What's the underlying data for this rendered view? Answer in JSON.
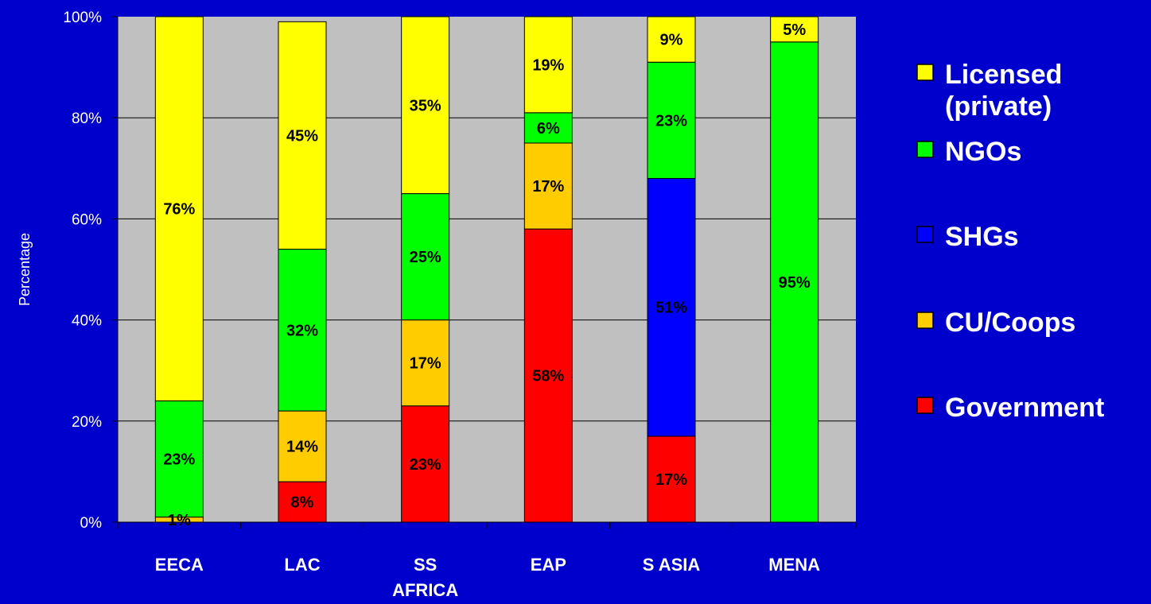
{
  "chart_data": {
    "type": "bar",
    "stacked": true,
    "title": "",
    "xlabel": "",
    "ylabel": "Percentage",
    "ylim": [
      0,
      100
    ],
    "yticks": [
      "0%",
      "20%",
      "40%",
      "60%",
      "80%",
      "100%"
    ],
    "grid": true,
    "legend_position": "right",
    "plot_background": "#c0c0c0",
    "page_background": "#0000cc",
    "categories": [
      [
        "EECA"
      ],
      [
        "LAC"
      ],
      [
        "SS",
        "AFRICA"
      ],
      [
        "EAP"
      ],
      [
        "S ASIA"
      ],
      [
        "MENA"
      ]
    ],
    "series": [
      {
        "key": "gov",
        "name": "Government",
        "color": "#ff0000",
        "values": [
          0,
          8,
          23,
          58,
          17,
          0
        ],
        "labels": [
          "",
          "8%",
          "23%",
          "58%",
          "17%",
          ""
        ]
      },
      {
        "key": "cu",
        "name": "CU/Coops",
        "color": "#ffcc00",
        "values": [
          1,
          14,
          17,
          17,
          0,
          0
        ],
        "labels": [
          "1%",
          "14%",
          "17%",
          "17%",
          "",
          ""
        ]
      },
      {
        "key": "shg",
        "name": "SHGs",
        "color": "#0000ff",
        "values": [
          0,
          0,
          0,
          0,
          51,
          0
        ],
        "labels": [
          "",
          "",
          "",
          "",
          "51%",
          ""
        ]
      },
      {
        "key": "ngo",
        "name": "NGOs",
        "color": "#00ff00",
        "values": [
          23,
          32,
          25,
          6,
          23,
          95
        ],
        "labels": [
          "23%",
          "32%",
          "25%",
          "6%",
          "23%",
          "95%"
        ]
      },
      {
        "key": "lic",
        "name": [
          "Licensed",
          "(private)"
        ],
        "color": "#ffff00",
        "values": [
          76,
          45,
          35,
          19,
          9,
          5
        ],
        "labels": [
          "76%",
          "45%",
          "35%",
          "19%",
          "9%",
          "5%"
        ]
      }
    ],
    "legend_order": [
      "lic",
      "ngo",
      "shg",
      "cu",
      "gov"
    ]
  }
}
